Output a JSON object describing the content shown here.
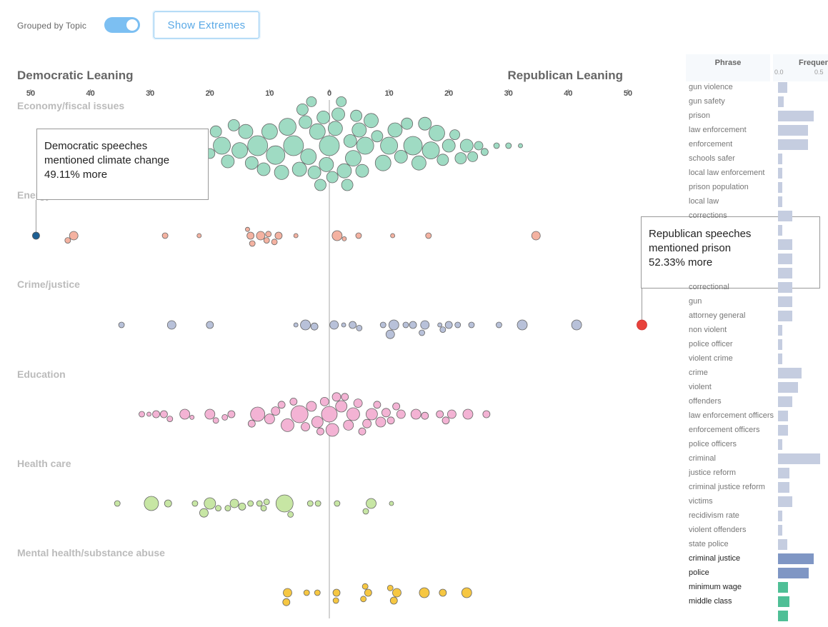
{
  "controls": {
    "toggle_label": "Grouped by Topic",
    "toggle_on": true,
    "extremes_label": "Show Extremes"
  },
  "chart_data": {
    "type": "scatter",
    "titles": {
      "left": "Democratic Leaning",
      "right": "Republican Leaning"
    },
    "ticks": [
      50,
      40,
      30,
      20,
      10,
      0,
      10,
      20,
      30,
      40,
      50
    ],
    "topics": [
      {
        "name": "Economy/fiscal issues",
        "color": "#9fdbc3",
        "points": [
          [
            -40,
            4
          ],
          [
            -38,
            3
          ],
          [
            -36,
            3
          ],
          [
            -34,
            4
          ],
          [
            -32,
            3
          ],
          [
            -30,
            4
          ],
          [
            -28,
            6
          ],
          [
            -26,
            5
          ],
          [
            -25,
            4
          ],
          [
            -24,
            4
          ],
          [
            -22,
            8
          ],
          [
            -20,
            7
          ],
          [
            -19,
            8
          ],
          [
            -18,
            12
          ],
          [
            -17,
            9
          ],
          [
            -16,
            8
          ],
          [
            -15,
            11
          ],
          [
            -14,
            10
          ],
          [
            -13,
            9
          ],
          [
            -12,
            14
          ],
          [
            -11,
            9
          ],
          [
            -10,
            11
          ],
          [
            -9,
            13
          ],
          [
            -8,
            10
          ],
          [
            -7,
            12
          ],
          [
            -6,
            14
          ],
          [
            -5,
            10
          ],
          [
            -4.5,
            8
          ],
          [
            -4,
            9
          ],
          [
            -3.5,
            11
          ],
          [
            -3,
            7
          ],
          [
            -2.5,
            9
          ],
          [
            -2,
            11
          ],
          [
            -1.5,
            8
          ],
          [
            -1,
            9
          ],
          [
            -0.5,
            10
          ],
          [
            0,
            14
          ],
          [
            0.5,
            8
          ],
          [
            1,
            10
          ],
          [
            1.5,
            9
          ],
          [
            2,
            7
          ],
          [
            2.5,
            10
          ],
          [
            3,
            8
          ],
          [
            3.5,
            9
          ],
          [
            4,
            11
          ],
          [
            4.5,
            8
          ],
          [
            5,
            10
          ],
          [
            5.5,
            9
          ],
          [
            6,
            12
          ],
          [
            7,
            10
          ],
          [
            8,
            8
          ],
          [
            9,
            11
          ],
          [
            10,
            12
          ],
          [
            11,
            10
          ],
          [
            12,
            9
          ],
          [
            13,
            8
          ],
          [
            14,
            13
          ],
          [
            15,
            10
          ],
          [
            16,
            9
          ],
          [
            17,
            12
          ],
          [
            18,
            11
          ],
          [
            19,
            8
          ],
          [
            20,
            9
          ],
          [
            21,
            7
          ],
          [
            22,
            8
          ],
          [
            23,
            9
          ],
          [
            24,
            7
          ],
          [
            25,
            6
          ],
          [
            26,
            5
          ],
          [
            28,
            4
          ],
          [
            30,
            4
          ],
          [
            32,
            3
          ]
        ]
      },
      {
        "name": "Energy",
        "color": "#f4b2a1",
        "points": [
          [
            -43.8,
            4
          ],
          [
            -42.8,
            6
          ],
          [
            -27.5,
            4
          ],
          [
            -21.8,
            3
          ],
          [
            -13.7,
            3
          ],
          [
            -13.2,
            5
          ],
          [
            -12.9,
            4
          ],
          [
            -11.5,
            6
          ],
          [
            -10.5,
            4
          ],
          [
            -10.2,
            4
          ],
          [
            -9.2,
            4
          ],
          [
            -8.5,
            5
          ],
          [
            -5.6,
            3
          ],
          [
            1.3,
            7
          ],
          [
            2.5,
            3
          ],
          [
            4.9,
            4
          ],
          [
            10.6,
            3
          ],
          [
            16.6,
            4
          ],
          [
            34.6,
            6
          ]
        ]
      },
      {
        "name": "Crime/justice",
        "color": "#b8c1d9",
        "points": [
          [
            -34.8,
            4
          ],
          [
            -26.4,
            6
          ],
          [
            -20,
            5
          ],
          [
            -5.6,
            3
          ],
          [
            -4,
            7
          ],
          [
            -2.5,
            5
          ],
          [
            0.8,
            6
          ],
          [
            2.4,
            3
          ],
          [
            3.9,
            5
          ],
          [
            5,
            4
          ],
          [
            9,
            4
          ],
          [
            10.2,
            6
          ],
          [
            10.8,
            7
          ],
          [
            12.8,
            4
          ],
          [
            14,
            5
          ],
          [
            15.5,
            4
          ],
          [
            16,
            6
          ],
          [
            18.5,
            3
          ],
          [
            19,
            4
          ],
          [
            20,
            5
          ],
          [
            21.5,
            4
          ],
          [
            23.8,
            4
          ],
          [
            28.4,
            4
          ],
          [
            32.3,
            7
          ],
          [
            41.4,
            7
          ]
        ]
      },
      {
        "name": "Education",
        "color": "#f3b3d4",
        "points": [
          [
            -31.4,
            4
          ],
          [
            -30.2,
            3
          ],
          [
            -29,
            5
          ],
          [
            -27.7,
            5
          ],
          [
            -26.7,
            4
          ],
          [
            -24.2,
            7
          ],
          [
            -23,
            3
          ],
          [
            -20,
            7
          ],
          [
            -19,
            4
          ],
          [
            -17.5,
            4
          ],
          [
            -16.4,
            5
          ],
          [
            -13,
            5
          ],
          [
            -12,
            10
          ],
          [
            -10,
            7
          ],
          [
            -9,
            6
          ],
          [
            -8,
            5
          ],
          [
            -7,
            9
          ],
          [
            -6,
            5
          ],
          [
            -5,
            12
          ],
          [
            -4,
            6
          ],
          [
            -3,
            7
          ],
          [
            -2,
            8
          ],
          [
            -1.5,
            5
          ],
          [
            -0.8,
            6
          ],
          [
            0,
            11
          ],
          [
            0.5,
            9
          ],
          [
            1.2,
            6
          ],
          [
            2,
            8
          ],
          [
            2.6,
            5
          ],
          [
            3.2,
            7
          ],
          [
            4,
            9
          ],
          [
            4.8,
            6
          ],
          [
            5.5,
            5
          ],
          [
            6.3,
            6
          ],
          [
            7.1,
            8
          ],
          [
            8,
            5
          ],
          [
            8.6,
            7
          ],
          [
            9.5,
            6
          ],
          [
            10.3,
            5
          ],
          [
            11.2,
            5
          ],
          [
            12,
            6
          ],
          [
            14.5,
            7
          ],
          [
            16,
            5
          ],
          [
            18.5,
            5
          ],
          [
            19.5,
            5
          ],
          [
            20.5,
            6
          ],
          [
            23.2,
            7
          ],
          [
            26.3,
            5
          ]
        ]
      },
      {
        "name": "Health care",
        "color": "#c7e6a4",
        "points": [
          [
            -35.5,
            4
          ],
          [
            -29.8,
            10
          ],
          [
            -27,
            5
          ],
          [
            -22.5,
            4
          ],
          [
            -21,
            6
          ],
          [
            -20,
            8
          ],
          [
            -18.6,
            4
          ],
          [
            -17,
            4
          ],
          [
            -15.9,
            6
          ],
          [
            -14.6,
            5
          ],
          [
            -13.2,
            4
          ],
          [
            -11.7,
            4
          ],
          [
            -11,
            4
          ],
          [
            -10.5,
            4
          ],
          [
            -7.5,
            12
          ],
          [
            -6.5,
            4
          ],
          [
            -3.2,
            4
          ],
          [
            -1.9,
            4
          ],
          [
            1.3,
            4
          ],
          [
            6.1,
            4
          ],
          [
            7,
            7
          ],
          [
            10.4,
            3
          ]
        ]
      },
      {
        "name": "Mental health/substance abuse",
        "color": "#f6c742",
        "points": [
          [
            -7,
            6
          ],
          [
            -7.2,
            5
          ],
          [
            -3.8,
            4
          ],
          [
            -2,
            4
          ],
          [
            1.2,
            5
          ],
          [
            1.1,
            4
          ],
          [
            5.7,
            4
          ],
          [
            6,
            4
          ],
          [
            6.5,
            5
          ],
          [
            10.2,
            4
          ],
          [
            10.8,
            5
          ],
          [
            11.3,
            6
          ],
          [
            15.9,
            7
          ],
          [
            19,
            5
          ],
          [
            23,
            7
          ]
        ]
      }
    ],
    "extremes": [
      {
        "side": "left",
        "x": -49.11,
        "color": "#1d5f93",
        "lines": [
          "Democratic speeches",
          "mentioned climate change",
          "49.11% more"
        ]
      },
      {
        "side": "right",
        "x": 52.33,
        "color": "#e8423b",
        "lines": [
          "Republican speeches",
          "mentioned prison",
          "52.33% more"
        ]
      }
    ]
  },
  "freq_panel": {
    "col_phrase": "Phrase",
    "col_freq": "Frequency",
    "ticks": [
      "0.0",
      "0.5"
    ],
    "rows": [
      {
        "phrase": "gun violence",
        "value": 0.14,
        "color": "#c5cde0"
      },
      {
        "phrase": "gun safety",
        "value": 0.09,
        "color": "#c5cde0"
      },
      {
        "phrase": "prison",
        "value": 0.55,
        "color": "#c5cde0"
      },
      {
        "phrase": "law enforcement",
        "value": 0.47,
        "color": "#c5cde0"
      },
      {
        "phrase": "enforcement",
        "value": 0.47,
        "color": "#c5cde0"
      },
      {
        "phrase": "schools safer",
        "value": 0.07,
        "color": "#c5cde0"
      },
      {
        "phrase": "local law enforcement",
        "value": 0.07,
        "color": "#c5cde0"
      },
      {
        "phrase": "prison population",
        "value": 0.07,
        "color": "#c5cde0"
      },
      {
        "phrase": "local law",
        "value": 0.07,
        "color": "#c5cde0"
      },
      {
        "phrase": "corrections",
        "value": 0.22,
        "color": "#c5cde0"
      },
      {
        "phrase": "",
        "value": 0.07,
        "color": "#c5cde0"
      },
      {
        "phrase": "",
        "value": 0.22,
        "color": "#c5cde0"
      },
      {
        "phrase": "",
        "value": 0.22,
        "color": "#c5cde0"
      },
      {
        "phrase": "",
        "value": 0.22,
        "color": "#c5cde0"
      },
      {
        "phrase": "correctional",
        "value": 0.22,
        "color": "#c5cde0"
      },
      {
        "phrase": "gun",
        "value": 0.22,
        "color": "#c5cde0"
      },
      {
        "phrase": "attorney general",
        "value": 0.22,
        "color": "#c5cde0"
      },
      {
        "phrase": "non violent",
        "value": 0.07,
        "color": "#c5cde0"
      },
      {
        "phrase": "police officer",
        "value": 0.07,
        "color": "#c5cde0"
      },
      {
        "phrase": "violent crime",
        "value": 0.07,
        "color": "#c5cde0"
      },
      {
        "phrase": "crime",
        "value": 0.37,
        "color": "#c5cde0"
      },
      {
        "phrase": "violent",
        "value": 0.31,
        "color": "#c5cde0"
      },
      {
        "phrase": "offenders",
        "value": 0.22,
        "color": "#c5cde0"
      },
      {
        "phrase": "law enforcement officers",
        "value": 0.16,
        "color": "#c5cde0"
      },
      {
        "phrase": "enforcement officers",
        "value": 0.16,
        "color": "#c5cde0"
      },
      {
        "phrase": "police officers",
        "value": 0.07,
        "color": "#c5cde0"
      },
      {
        "phrase": "criminal",
        "value": 0.65,
        "color": "#c5cde0"
      },
      {
        "phrase": "justice reform",
        "value": 0.18,
        "color": "#c5cde0"
      },
      {
        "phrase": "criminal justice reform",
        "value": 0.18,
        "color": "#c5cde0"
      },
      {
        "phrase": "victims",
        "value": 0.22,
        "color": "#c5cde0"
      },
      {
        "phrase": "recidivism rate",
        "value": 0.07,
        "color": "#c5cde0"
      },
      {
        "phrase": "violent offenders",
        "value": 0.07,
        "color": "#c5cde0"
      },
      {
        "phrase": "state police",
        "value": 0.14,
        "color": "#c5cde0"
      },
      {
        "phrase": "criminal justice",
        "value": 0.55,
        "color": "#7f96c4",
        "highlight": true
      },
      {
        "phrase": "police",
        "value": 0.48,
        "color": "#7f96c4",
        "highlight": true
      },
      {
        "phrase": "minimum wage",
        "value": 0.16,
        "color": "#4fbf96",
        "highlight": true
      },
      {
        "phrase": "middle class",
        "value": 0.18,
        "color": "#4fbf96",
        "highlight": true
      },
      {
        "phrase": "",
        "value": 0.16,
        "color": "#4fbf96",
        "highlight": true
      }
    ]
  }
}
